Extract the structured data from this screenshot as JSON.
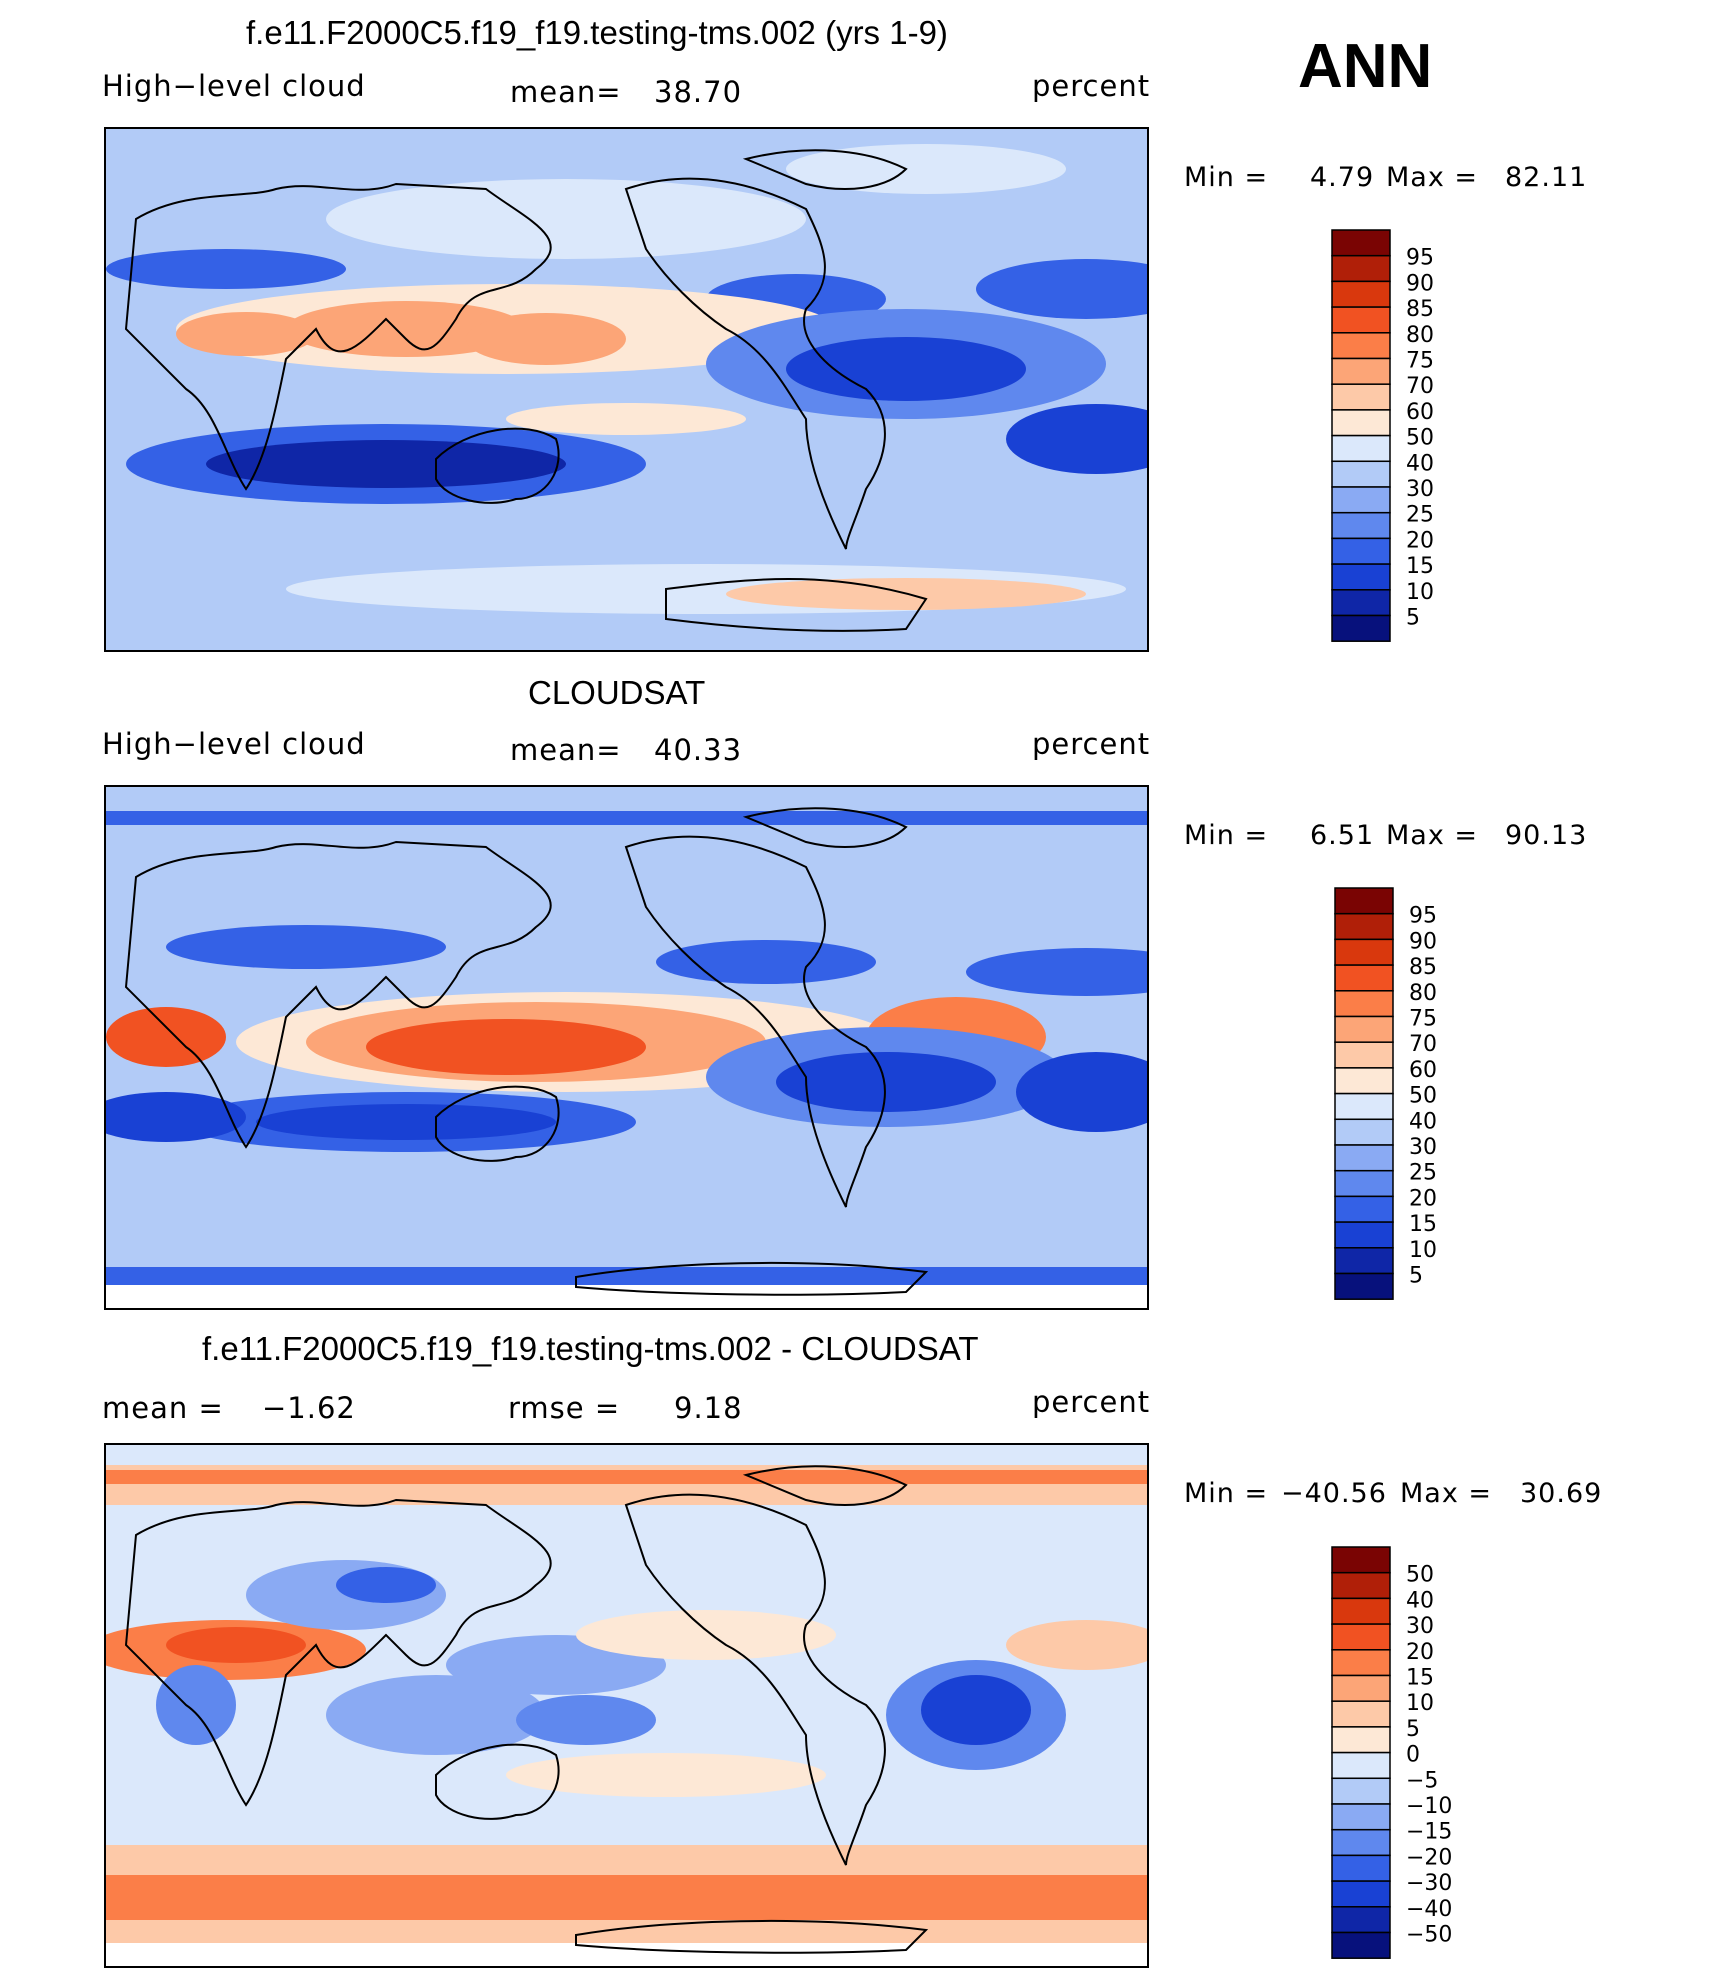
{
  "season": "ANN",
  "panels": [
    {
      "title": "f.e11.F2000C5.f19_f19.testing-tms.002 (yrs 1-9)",
      "left_label": "High−level cloud",
      "stat1_label": "mean=",
      "stat1_value": "38.70",
      "stat2_label": "",
      "stat2_value": "",
      "units": "percent",
      "min_label": "Min =",
      "min_value": "4.79",
      "max_label": "Max =",
      "max_value": "82.11",
      "colorbar_levels": [
        "95",
        "90",
        "85",
        "80",
        "75",
        "70",
        "60",
        "50",
        "40",
        "30",
        "25",
        "20",
        "15",
        "10",
        "5"
      ]
    },
    {
      "title": "CLOUDSAT",
      "left_label": "High−level cloud",
      "stat1_label": "mean=",
      "stat1_value": "40.33",
      "stat2_label": "",
      "stat2_value": "",
      "units": "percent",
      "min_label": "Min =",
      "min_value": "6.51",
      "max_label": "Max =",
      "max_value": "90.13",
      "colorbar_levels": [
        "95",
        "90",
        "85",
        "80",
        "75",
        "70",
        "60",
        "50",
        "40",
        "30",
        "25",
        "20",
        "15",
        "10",
        "5"
      ]
    },
    {
      "title": "f.e11.F2000C5.f19_f19.testing-tms.002 - CLOUDSAT",
      "left_label": "mean =",
      "stat1_label": "",
      "stat1_value": "−1.62",
      "stat2_label": "rmse =",
      "stat2_value": "9.18",
      "units": "percent",
      "min_label": "Min =",
      "min_value": "−40.56",
      "max_label": "Max =",
      "max_value": "30.69",
      "colorbar_levels": [
        "50",
        "40",
        "30",
        "20",
        "15",
        "10",
        "5",
        "0",
        "−5",
        "−10",
        "−15",
        "−20",
        "−30",
        "−40",
        "−50"
      ]
    }
  ],
  "chart_data": [
    {
      "type": "heatmap",
      "title": "f.e11.F2000C5.f19_f19.testing-tms.002 (yrs 1-9)",
      "variable": "High−level cloud",
      "units": "percent",
      "mean": 38.7,
      "min": 4.79,
      "max": 82.11,
      "levels": [
        5,
        10,
        15,
        20,
        25,
        30,
        40,
        50,
        60,
        70,
        75,
        80,
        85,
        90,
        95
      ]
    },
    {
      "type": "heatmap",
      "title": "CLOUDSAT",
      "variable": "High−level cloud",
      "units": "percent",
      "mean": 40.33,
      "min": 6.51,
      "max": 90.13,
      "levels": [
        5,
        10,
        15,
        20,
        25,
        30,
        40,
        50,
        60,
        70,
        75,
        80,
        85,
        90,
        95
      ]
    },
    {
      "type": "heatmap",
      "title": "f.e11.F2000C5.f19_f19.testing-tms.002 - CLOUDSAT",
      "units": "percent",
      "mean": -1.62,
      "rmse": 9.18,
      "min": -40.56,
      "max": 30.69,
      "levels": [
        -50,
        -40,
        -30,
        -20,
        -15,
        -10,
        -5,
        0,
        5,
        10,
        15,
        20,
        30,
        40,
        50
      ]
    }
  ],
  "colors": {
    "scale": [
      "#7a0403",
      "#b01f08",
      "#d9380d",
      "#f15222",
      "#fb7e48",
      "#fca577",
      "#fdc9a8",
      "#fde8d6",
      "#dbe8fb",
      "#b2cbf7",
      "#8aaaf3",
      "#5f88ee",
      "#3461e6",
      "#1941d4",
      "#0f26a7",
      "#07117c"
    ]
  }
}
